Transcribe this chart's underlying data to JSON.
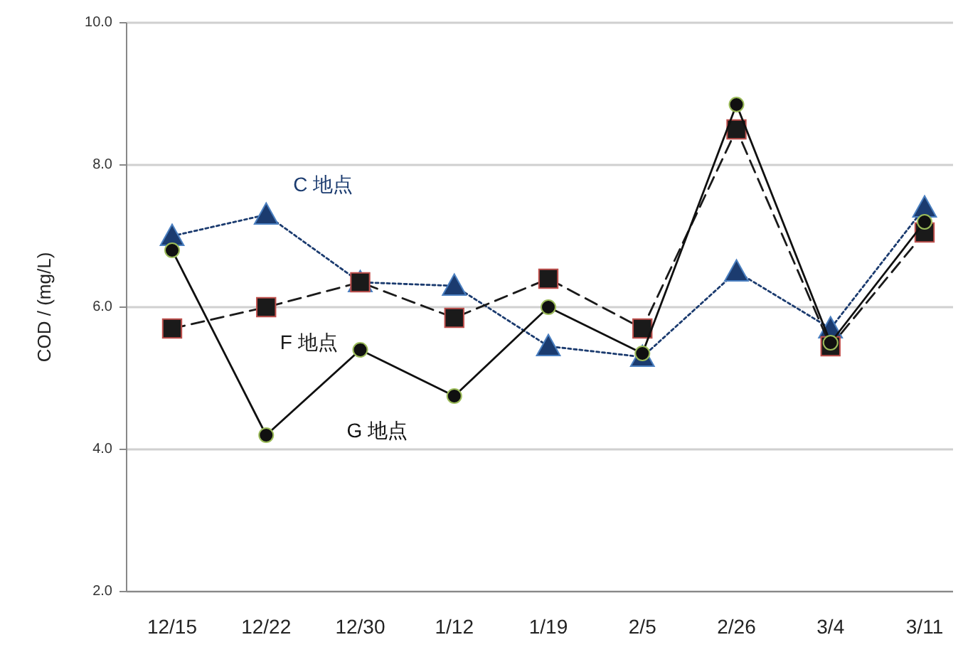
{
  "chart_data": {
    "type": "line",
    "ylabel": "COD / (mg/L)",
    "categories": [
      "12/15",
      "12/22",
      "12/30",
      "1/12",
      "1/19",
      "2/5",
      "2/26",
      "3/4",
      "3/11"
    ],
    "series": [
      {
        "name": "C 地点",
        "color": "#1b3b6f",
        "marker": "triangle",
        "line_style": "dotted",
        "values": [
          7.0,
          7.3,
          6.35,
          6.3,
          5.45,
          5.3,
          6.5,
          5.7,
          7.4
        ]
      },
      {
        "name": "F 地点",
        "color": "#1a1a1a",
        "marker": "square",
        "line_style": "dashed",
        "values": [
          5.7,
          6.0,
          6.35,
          5.85,
          6.4,
          5.7,
          8.5,
          5.45,
          7.05
        ]
      },
      {
        "name": "G 地点",
        "color": "#101010",
        "marker": "circle",
        "line_style": "solid",
        "values": [
          6.8,
          4.2,
          5.4,
          4.75,
          6.0,
          5.35,
          8.85,
          5.5,
          7.2
        ]
      }
    ],
    "ylim": [
      2,
      10
    ],
    "yticks": [
      {
        "value": 2,
        "label": "2.0"
      },
      {
        "value": 4,
        "label": "4.0"
      },
      {
        "value": 6,
        "label": "6.0"
      },
      {
        "value": 8,
        "label": "8.0"
      },
      {
        "value": 10,
        "label": "10.0"
      }
    ],
    "grid": "y"
  }
}
